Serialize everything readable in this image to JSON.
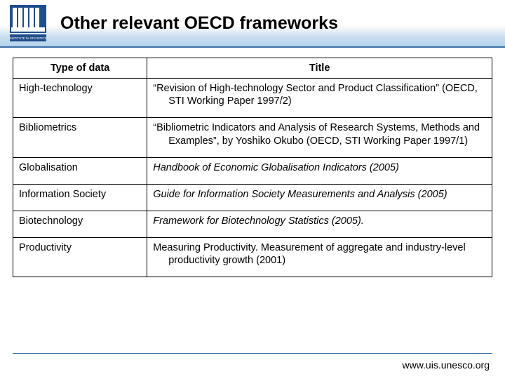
{
  "header": {
    "title": "Other relevant OECD frameworks",
    "logo_caption": "INSTITUTE for STATISTICS"
  },
  "table": {
    "columns": [
      "Type of data",
      "Title"
    ],
    "col_widths_pct": [
      28,
      72
    ],
    "border_color": "#000000",
    "header_bg": "#ffffff",
    "font_size_pt": 14.5,
    "rows": [
      {
        "type": "High-technology",
        "title_html": "“Revision of High-technology Sector and Product Classification” (OECD, STI Working Paper 1997/2)",
        "italic": false
      },
      {
        "type": "Bibliometrics",
        "title_html": "“Bibliometric Indicators and Analysis of Research Systems, Methods and Examples”, by Yoshiko Okubo (OECD, STI Working Paper 1997/1)",
        "italic": false
      },
      {
        "type": "Globalisation",
        "title_html": "Handbook of Economic Globalisation Indicators (2005)",
        "italic": true
      },
      {
        "type": "Information Society",
        "title_html": "Guide for Information Society Measurements and Analysis (2005)",
        "italic": true
      },
      {
        "type": "Biotechnology",
        "title_html": "Framework for Biotechnology Statistics (2005).",
        "italic": true
      },
      {
        "type": "Productivity",
        "title_html": "Measuring Productivity. Measurement of aggregate and industry-level productivity growth (2001)",
        "italic": false
      }
    ]
  },
  "footer": {
    "url": "www.uis.unesco.org",
    "line_color": "#3a6ea5"
  },
  "colors": {
    "header_gradient_top": "#ffffff",
    "header_gradient_bottom": "#b5d3ec",
    "header_border": "#3a6ea5",
    "text": "#000000",
    "background": "#ffffff",
    "logo_blue": "#1f4e8c"
  }
}
